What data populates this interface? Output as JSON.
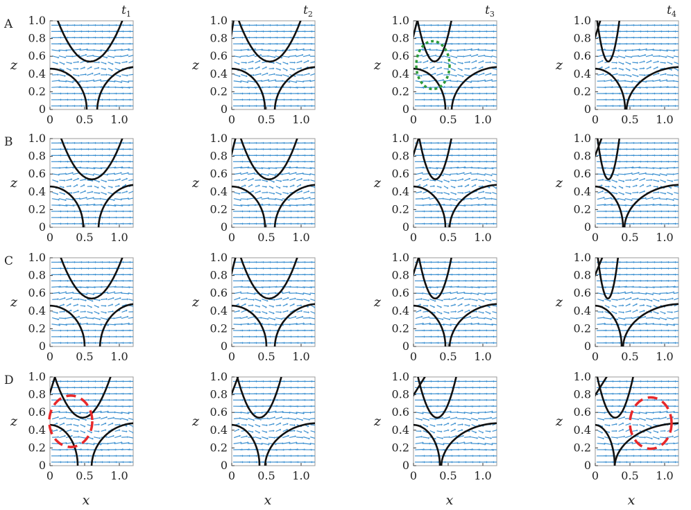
{
  "column_titles": [
    {
      "base": "t",
      "sub": "1"
    },
    {
      "base": "t",
      "sub": "2"
    },
    {
      "base": "t",
      "sub": "3"
    },
    {
      "base": "t",
      "sub": "4"
    }
  ],
  "row_labels": [
    "A",
    "B",
    "C",
    "D"
  ],
  "x_axis_label": "x",
  "z_axis_label": "z",
  "x_ticks": [
    "0",
    "0.5",
    "1.0"
  ],
  "z_ticks": [
    "0",
    "0.2",
    "0.4",
    "0.6",
    "0.8",
    "1.0"
  ],
  "colors": {
    "arrows": "#3a8fd0",
    "contours": "#111111",
    "highlight_green": "#2e9a3a",
    "highlight_red": "#e8282a"
  },
  "highlights": [
    {
      "row": 0,
      "col": 2,
      "color": "green",
      "style": "dotted",
      "cx": 0.28,
      "cz": 0.5,
      "rx": 0.24,
      "rz": 0.27
    },
    {
      "row": 3,
      "col": 0,
      "color": "red",
      "style": "dashed",
      "cx": 0.3,
      "cz": 0.5,
      "rx": 0.31,
      "rz": 0.29
    },
    {
      "row": 3,
      "col": 3,
      "color": "red",
      "style": "dashed",
      "cx": 0.8,
      "cz": 0.48,
      "rx": 0.3,
      "rz": 0.29
    }
  ],
  "panels": [
    [
      {
        "ul": 0.42,
        "ur": 1.05,
        "bottom": 0.68,
        "lr": 0.25,
        "ll": 0.55,
        "tfl": 0,
        "tfr": 0.08
      },
      {
        "ul": 0.38,
        "ur": 1.0,
        "bottom": 0.62,
        "lr": 0.45,
        "ll": 0.5,
        "tfl": 0.05,
        "tfr": 0
      },
      {
        "ul": 0.22,
        "ur": 0.55,
        "bottom": 0.55,
        "lr": 0.55,
        "ll": 0.48,
        "tfl": 0.08,
        "tfr": 0.3
      },
      {
        "ul": 0.1,
        "ur": 0.35,
        "bottom": 0.45,
        "lr": 0.65,
        "ll": 0.45,
        "tfl": 0.1,
        "tfr": 0.35
      }
    ],
    [
      {
        "ul": 0.62,
        "ur": 1.05,
        "bottom": 0.7,
        "lr": 0.3,
        "ll": 0.5,
        "tfl": 0,
        "tfr": 0
      },
      {
        "ul": 0.5,
        "ur": 0.95,
        "bottom": 0.62,
        "lr": 0.4,
        "ll": 0.5,
        "tfl": 0.08,
        "tfr": 0
      },
      {
        "ul": 0.32,
        "ur": 0.55,
        "bottom": 0.52,
        "lr": 0.55,
        "ll": 0.48,
        "tfl": 0.1,
        "tfr": 0.22
      },
      {
        "ul": 0.12,
        "ur": 0.35,
        "bottom": 0.42,
        "lr": 0.62,
        "ll": 0.42,
        "tfl": 0.12,
        "tfr": 0.35
      }
    ],
    [
      {
        "ul": 0.6,
        "ur": 1.05,
        "bottom": 0.72,
        "lr": 0.3,
        "ll": 0.52,
        "tfl": 0,
        "tfr": 0
      },
      {
        "ul": 0.5,
        "ur": 0.95,
        "bottom": 0.62,
        "lr": 0.4,
        "ll": 0.52,
        "tfl": 0.08,
        "tfr": 0
      },
      {
        "ul": 0.3,
        "ur": 0.55,
        "bottom": 0.52,
        "lr": 0.55,
        "ll": 0.48,
        "tfl": 0.1,
        "tfr": 0.28
      },
      {
        "ul": 0.14,
        "ur": 0.33,
        "bottom": 0.4,
        "lr": 0.62,
        "ll": 0.4,
        "tfl": 0.13,
        "tfr": 0.4
      }
    ],
    [
      {
        "ul": 0.25,
        "ur": 0.88,
        "bottom": 0.6,
        "lr": 0.35,
        "ll": 0.42,
        "tfl": 0.1,
        "tfr": 0
      },
      {
        "ul": 0.3,
        "ur": 0.72,
        "bottom": 0.48,
        "lr": 0.5,
        "ll": 0.42,
        "tfl": 0.12,
        "tfr": 0.12
      },
      {
        "ul": 0.24,
        "ur": 0.62,
        "bottom": 0.4,
        "lr": 0.55,
        "ll": 0.4,
        "tfl": 0.2,
        "tfr": 0.2
      },
      {
        "ul": 0.1,
        "ur": 0.55,
        "bottom": 0.28,
        "lr": 0.45,
        "ll": 0.3,
        "tfl": 0.2,
        "tfr": 0.28
      }
    ]
  ]
}
